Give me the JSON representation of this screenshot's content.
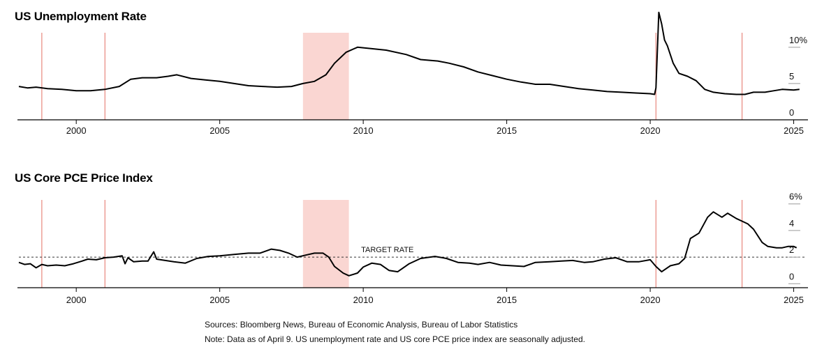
{
  "chart_data": [
    {
      "type": "line",
      "title": "US Unemployment Rate",
      "x_range": [
        1998.0,
        2025.4
      ],
      "ylim": [
        0,
        12
      ],
      "y_ticks": [
        0,
        5,
        10
      ],
      "y_tick_labels": [
        "0",
        "5",
        "10%"
      ],
      "x_ticks": [
        2000,
        2005,
        2010,
        2015,
        2020,
        2025
      ],
      "x_tick_labels": [
        "2000",
        "2005",
        "2010",
        "2015",
        "2020",
        "2025"
      ],
      "shaded_region": [
        2007.9,
        2009.5
      ],
      "vertical_lines": [
        1998.8,
        2001.0,
        2020.2,
        2023.2
      ],
      "series": [
        {
          "color": "#000000",
          "points": [
            [
              1998.0,
              4.6
            ],
            [
              1998.3,
              4.4
            ],
            [
              1998.6,
              4.5
            ],
            [
              1999.0,
              4.3
            ],
            [
              1999.5,
              4.2
            ],
            [
              2000.0,
              4.0
            ],
            [
              2000.5,
              4.0
            ],
            [
              2001.0,
              4.2
            ],
            [
              2001.5,
              4.6
            ],
            [
              2001.9,
              5.6
            ],
            [
              2002.3,
              5.8
            ],
            [
              2002.8,
              5.8
            ],
            [
              2003.2,
              6.0
            ],
            [
              2003.5,
              6.2
            ],
            [
              2004.0,
              5.7
            ],
            [
              2004.5,
              5.5
            ],
            [
              2005.0,
              5.3
            ],
            [
              2005.5,
              5.0
            ],
            [
              2006.0,
              4.7
            ],
            [
              2006.5,
              4.6
            ],
            [
              2007.0,
              4.5
            ],
            [
              2007.5,
              4.6
            ],
            [
              2007.9,
              5.0
            ],
            [
              2008.3,
              5.3
            ],
            [
              2008.7,
              6.2
            ],
            [
              2009.0,
              7.8
            ],
            [
              2009.4,
              9.3
            ],
            [
              2009.8,
              10.0
            ],
            [
              2010.3,
              9.8
            ],
            [
              2010.8,
              9.6
            ],
            [
              2011.5,
              9.0
            ],
            [
              2012.0,
              8.3
            ],
            [
              2012.6,
              8.1
            ],
            [
              2013.0,
              7.8
            ],
            [
              2013.5,
              7.3
            ],
            [
              2014.0,
              6.6
            ],
            [
              2014.5,
              6.1
            ],
            [
              2015.0,
              5.6
            ],
            [
              2015.5,
              5.2
            ],
            [
              2016.0,
              4.9
            ],
            [
              2016.5,
              4.9
            ],
            [
              2017.0,
              4.6
            ],
            [
              2017.5,
              4.3
            ],
            [
              2018.0,
              4.1
            ],
            [
              2018.5,
              3.9
            ],
            [
              2019.0,
              3.8
            ],
            [
              2019.5,
              3.7
            ],
            [
              2020.0,
              3.6
            ],
            [
              2020.15,
              3.5
            ],
            [
              2020.2,
              4.4
            ],
            [
              2020.3,
              14.8
            ],
            [
              2020.4,
              13.2
            ],
            [
              2020.5,
              11.0
            ],
            [
              2020.6,
              10.2
            ],
            [
              2020.8,
              7.8
            ],
            [
              2021.0,
              6.4
            ],
            [
              2021.3,
              6.0
            ],
            [
              2021.6,
              5.4
            ],
            [
              2021.9,
              4.2
            ],
            [
              2022.2,
              3.8
            ],
            [
              2022.6,
              3.6
            ],
            [
              2023.0,
              3.5
            ],
            [
              2023.3,
              3.5
            ],
            [
              2023.6,
              3.8
            ],
            [
              2024.0,
              3.8
            ],
            [
              2024.3,
              4.0
            ],
            [
              2024.6,
              4.2
            ],
            [
              2025.0,
              4.1
            ],
            [
              2025.2,
              4.2
            ]
          ]
        }
      ]
    },
    {
      "type": "line",
      "title": "US Core PCE Price Index",
      "x_range": [
        1998.0,
        2025.4
      ],
      "ylim": [
        -0.3,
        6.3
      ],
      "y_ticks": [
        0,
        2,
        4,
        6
      ],
      "y_tick_labels": [
        "0",
        "2",
        "4",
        "6%"
      ],
      "x_ticks": [
        2000,
        2005,
        2010,
        2015,
        2020,
        2025
      ],
      "x_tick_labels": [
        "2000",
        "2005",
        "2010",
        "2015",
        "2020",
        "2025"
      ],
      "shaded_region": [
        2007.9,
        2009.5
      ],
      "vertical_lines": [
        1998.8,
        2001.0,
        2020.2,
        2023.2
      ],
      "reference_line": {
        "y": 2.0,
        "label": "TARGET RATE",
        "label_x": 2010.0
      },
      "series": [
        {
          "color": "#000000",
          "points": [
            [
              1998.0,
              1.6
            ],
            [
              1998.2,
              1.45
            ],
            [
              1998.4,
              1.5
            ],
            [
              1998.6,
              1.2
            ],
            [
              1998.8,
              1.45
            ],
            [
              1999.0,
              1.35
            ],
            [
              1999.3,
              1.4
            ],
            [
              1999.6,
              1.35
            ],
            [
              1999.9,
              1.5
            ],
            [
              2000.2,
              1.7
            ],
            [
              2000.4,
              1.85
            ],
            [
              2000.7,
              1.8
            ],
            [
              2001.0,
              1.95
            ],
            [
              2001.3,
              2.0
            ],
            [
              2001.6,
              2.1
            ],
            [
              2001.7,
              1.5
            ],
            [
              2001.8,
              1.95
            ],
            [
              2002.0,
              1.65
            ],
            [
              2002.3,
              1.7
            ],
            [
              2002.5,
              1.7
            ],
            [
              2002.7,
              2.4
            ],
            [
              2002.8,
              1.85
            ],
            [
              2003.1,
              1.75
            ],
            [
              2003.4,
              1.65
            ],
            [
              2003.8,
              1.55
            ],
            [
              2004.2,
              1.9
            ],
            [
              2004.6,
              2.05
            ],
            [
              2005.0,
              2.1
            ],
            [
              2005.5,
              2.2
            ],
            [
              2006.0,
              2.3
            ],
            [
              2006.4,
              2.3
            ],
            [
              2006.8,
              2.6
            ],
            [
              2007.1,
              2.5
            ],
            [
              2007.4,
              2.3
            ],
            [
              2007.7,
              2.0
            ],
            [
              2008.0,
              2.15
            ],
            [
              2008.3,
              2.3
            ],
            [
              2008.6,
              2.3
            ],
            [
              2008.8,
              2.0
            ],
            [
              2009.0,
              1.3
            ],
            [
              2009.3,
              0.8
            ],
            [
              2009.5,
              0.6
            ],
            [
              2009.8,
              0.8
            ],
            [
              2010.0,
              1.25
            ],
            [
              2010.3,
              1.55
            ],
            [
              2010.6,
              1.45
            ],
            [
              2010.9,
              1.0
            ],
            [
              2011.2,
              0.9
            ],
            [
              2011.6,
              1.5
            ],
            [
              2012.0,
              1.9
            ],
            [
              2012.5,
              2.05
            ],
            [
              2012.9,
              1.9
            ],
            [
              2013.3,
              1.6
            ],
            [
              2013.7,
              1.55
            ],
            [
              2014.0,
              1.45
            ],
            [
              2014.4,
              1.6
            ],
            [
              2014.8,
              1.4
            ],
            [
              2015.2,
              1.35
            ],
            [
              2015.6,
              1.3
            ],
            [
              2016.0,
              1.6
            ],
            [
              2016.5,
              1.65
            ],
            [
              2016.9,
              1.7
            ],
            [
              2017.3,
              1.75
            ],
            [
              2017.7,
              1.6
            ],
            [
              2018.0,
              1.65
            ],
            [
              2018.4,
              1.85
            ],
            [
              2018.8,
              1.95
            ],
            [
              2019.2,
              1.65
            ],
            [
              2019.6,
              1.65
            ],
            [
              2020.0,
              1.8
            ],
            [
              2020.2,
              1.3
            ],
            [
              2020.4,
              0.9
            ],
            [
              2020.7,
              1.35
            ],
            [
              2021.0,
              1.5
            ],
            [
              2021.2,
              1.9
            ],
            [
              2021.4,
              3.4
            ],
            [
              2021.7,
              3.8
            ],
            [
              2022.0,
              5.0
            ],
            [
              2022.2,
              5.4
            ],
            [
              2022.5,
              5.0
            ],
            [
              2022.7,
              5.3
            ],
            [
              2023.0,
              4.9
            ],
            [
              2023.2,
              4.7
            ],
            [
              2023.4,
              4.5
            ],
            [
              2023.6,
              4.1
            ],
            [
              2023.9,
              3.1
            ],
            [
              2024.1,
              2.8
            ],
            [
              2024.4,
              2.7
            ],
            [
              2024.6,
              2.7
            ],
            [
              2024.8,
              2.8
            ],
            [
              2025.0,
              2.8
            ],
            [
              2025.1,
              2.7
            ]
          ]
        }
      ]
    }
  ],
  "sources": "Sources: Bloomberg News, Bureau of Economic Analysis, Bureau of Labor Statistics",
  "note": "Note: Data as of April 9. US unemployment rate and US core PCE price index are seasonally adjusted.",
  "colors": {
    "line": "#000000",
    "event_line": "#e8877d",
    "shading": "#fad6d2",
    "axis": "#000000",
    "tick_mark": "#9a9a9a"
  }
}
